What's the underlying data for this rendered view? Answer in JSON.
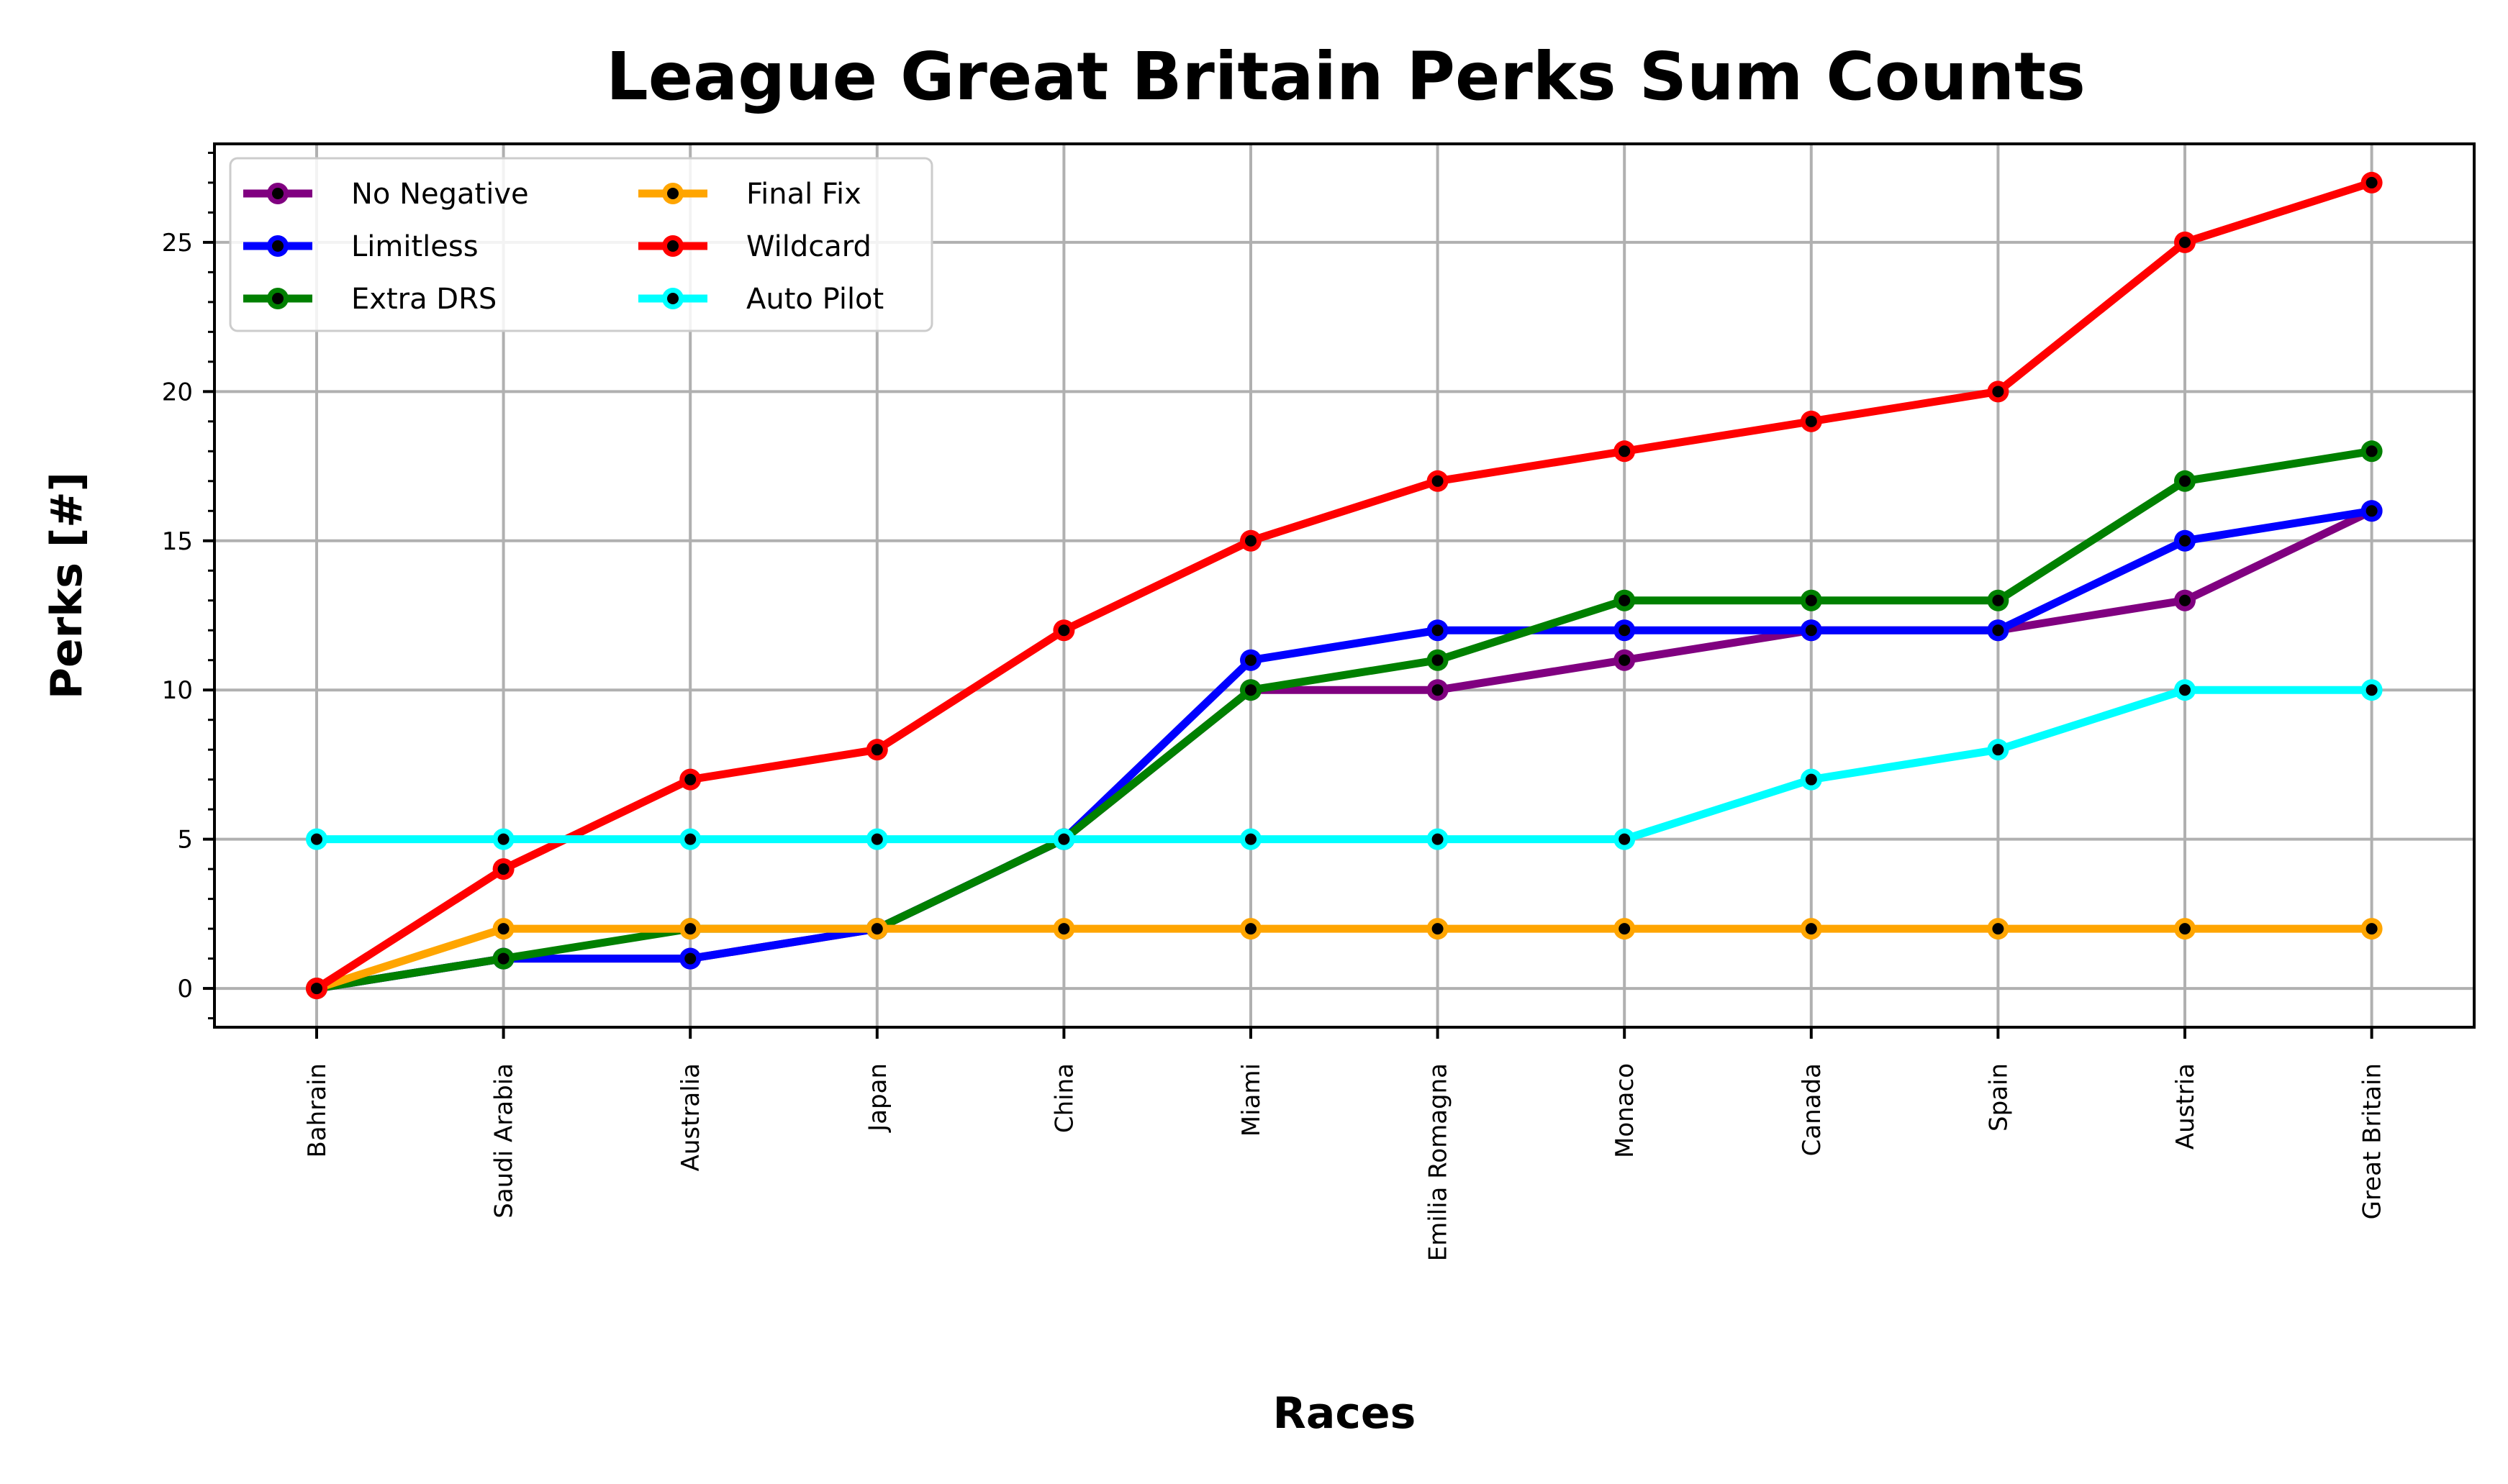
{
  "chart_data": {
    "type": "line",
    "title": "League Great Britain Perks Sum Counts",
    "xlabel": "Races",
    "ylabel": "Perks [#]",
    "categories": [
      "Bahrain",
      "Saudi Arabia",
      "Australia",
      "Japan",
      "China",
      "Miami",
      "Emilia Romagna",
      "Monaco",
      "Canada",
      "Spain",
      "Austria",
      "Great Britain"
    ],
    "ylim": [
      -1.3,
      28.3
    ],
    "yticks": [
      0,
      5,
      10,
      15,
      20,
      25
    ],
    "grid": true,
    "legend_position": "top-left",
    "legend_columns": 2,
    "marker_fill": "#000000",
    "series": [
      {
        "name": "No Negative",
        "color": "#800080",
        "values": [
          0,
          1,
          1,
          2,
          5,
          10,
          10,
          11,
          12,
          12,
          13,
          16
        ]
      },
      {
        "name": "Limitless",
        "color": "#0000ff",
        "values": [
          0,
          1,
          1,
          2,
          5,
          11,
          12,
          12,
          12,
          12,
          15,
          16
        ]
      },
      {
        "name": "Extra DRS",
        "color": "#008000",
        "values": [
          0,
          1,
          2,
          2,
          5,
          10,
          11,
          13,
          13,
          13,
          17,
          18
        ]
      },
      {
        "name": "Final Fix",
        "color": "#ffa500",
        "values": [
          0,
          2,
          2,
          2,
          2,
          2,
          2,
          2,
          2,
          2,
          2,
          2
        ]
      },
      {
        "name": "Wildcard",
        "color": "#ff0000",
        "values": [
          0,
          4,
          7,
          8,
          12,
          15,
          17,
          18,
          19,
          20,
          25,
          27
        ]
      },
      {
        "name": "Auto Pilot",
        "color": "#00ffff",
        "values": [
          5,
          5,
          5,
          5,
          5,
          5,
          5,
          5,
          7,
          8,
          10,
          10
        ]
      }
    ]
  }
}
